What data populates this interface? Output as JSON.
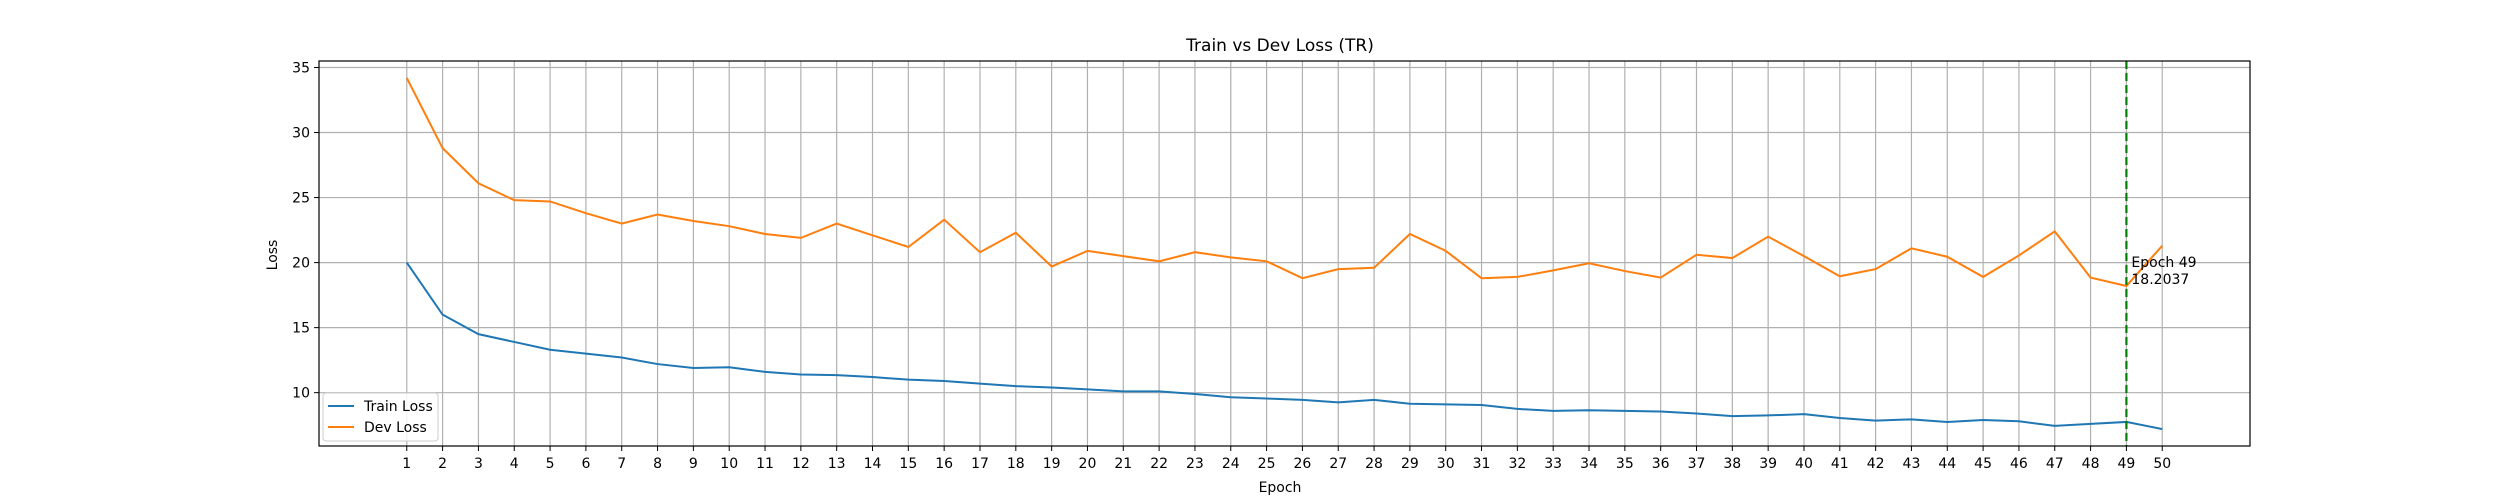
{
  "chart_data": {
    "type": "line",
    "title": "Train vs Dev Loss (TR)",
    "xlabel": "Epoch",
    "ylabel": "Loss",
    "x": [
      1,
      2,
      3,
      4,
      5,
      6,
      7,
      8,
      9,
      10,
      11,
      12,
      13,
      14,
      15,
      16,
      17,
      18,
      19,
      20,
      21,
      22,
      23,
      24,
      25,
      26,
      27,
      28,
      29,
      30,
      31,
      32,
      33,
      34,
      35,
      36,
      37,
      38,
      39,
      40,
      41,
      42,
      43,
      44,
      45,
      46,
      47,
      48,
      49,
      50
    ],
    "xlim": [
      -1.45,
      52.45
    ],
    "ylim": [
      5.9,
      35.5
    ],
    "yticks": [
      10,
      15,
      20,
      25,
      30,
      35
    ],
    "grid": true,
    "legend_position": "lower-left",
    "series": [
      {
        "name": "Train Loss",
        "color": "#1f77b4",
        "values": [
          20.0,
          16.0,
          14.5,
          13.9,
          13.3,
          13.0,
          12.7,
          12.2,
          11.9,
          11.95,
          11.6,
          11.4,
          11.35,
          11.2,
          11.0,
          10.9,
          10.7,
          10.5,
          10.4,
          10.25,
          10.1,
          10.1,
          9.9,
          9.65,
          9.55,
          9.45,
          9.25,
          9.45,
          9.15,
          9.1,
          9.05,
          8.75,
          8.6,
          8.65,
          8.6,
          8.55,
          8.4,
          8.2,
          8.25,
          8.35,
          8.05,
          7.85,
          7.95,
          7.75,
          7.9,
          7.8,
          7.45,
          7.6,
          7.75,
          7.2
        ]
      },
      {
        "name": "Dev Loss",
        "color": "#ff7f0e",
        "values": [
          34.2,
          28.8,
          26.1,
          24.8,
          24.7,
          23.8,
          23.0,
          23.7,
          23.2,
          22.8,
          22.2,
          21.9,
          23.0,
          22.1,
          21.2,
          23.3,
          20.8,
          22.3,
          19.7,
          20.9,
          20.5,
          20.1,
          20.8,
          20.4,
          20.1,
          18.8,
          19.5,
          19.6,
          22.2,
          20.9,
          18.8,
          18.9,
          19.4,
          19.95,
          19.35,
          18.85,
          20.6,
          20.35,
          22.0,
          20.5,
          18.95,
          19.5,
          21.1,
          20.45,
          18.9,
          20.55,
          22.4,
          18.85,
          18.2037,
          21.3
        ]
      }
    ],
    "annotation": {
      "epoch": 49,
      "line_color": "#008000",
      "line_style": "dashed",
      "label_line1": "Epoch 49",
      "label_line2": "18.2037"
    }
  }
}
